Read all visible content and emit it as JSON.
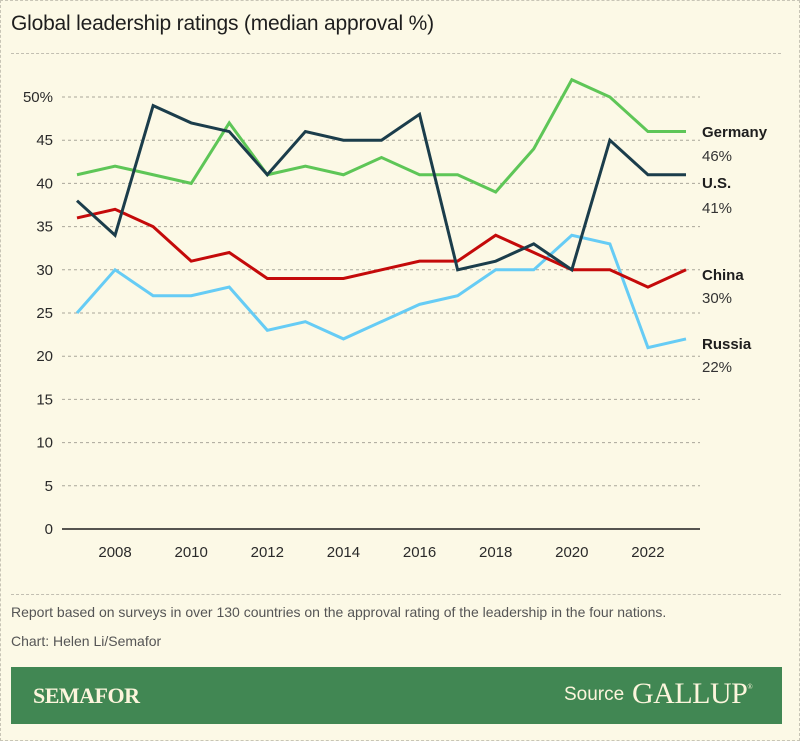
{
  "title": "Global leadership ratings (median approval %)",
  "note": "Report based on surveys in over 130 countries on the approval rating of the leadership in the four nations.",
  "credit": "Chart: Helen Li/Semafor",
  "banner": {
    "brand": "SEMAFOR",
    "source_label": "Source",
    "source_name": "GALLUP",
    "source_mark": "®",
    "background": "#418753"
  },
  "chart_data": {
    "type": "line",
    "title": "Global leadership ratings (median approval %)",
    "xlabel": "",
    "ylabel": "",
    "x": [
      2007,
      2008,
      2009,
      2010,
      2011,
      2012,
      2013,
      2014,
      2015,
      2016,
      2017,
      2018,
      2019,
      2020,
      2021,
      2022,
      2023
    ],
    "xlim": [
      2007,
      2023
    ],
    "ylim": [
      0,
      50
    ],
    "yticks": [
      0,
      5,
      10,
      15,
      20,
      25,
      30,
      35,
      40,
      45,
      50
    ],
    "ytick_labels": [
      "0",
      "5",
      "10",
      "15",
      "20",
      "25",
      "30",
      "35",
      "40",
      "45",
      "50%"
    ],
    "xticks": [
      2008,
      2010,
      2012,
      2014,
      2016,
      2018,
      2020,
      2022
    ],
    "xtick_labels": [
      "2008",
      "2010",
      "2012",
      "2014",
      "2016",
      "2018",
      "2020",
      "2022"
    ],
    "grid": true,
    "legend": "direct-labels-right",
    "series": [
      {
        "name": "Germany",
        "end_label": "46%",
        "color": "#5ec657",
        "values": [
          41,
          42,
          41,
          40,
          47,
          41,
          42,
          41,
          43,
          41,
          41,
          39,
          44,
          52,
          50,
          46,
          46
        ]
      },
      {
        "name": "U.S.",
        "end_label": "41%",
        "color": "#1b3d4b",
        "values": [
          38,
          34,
          49,
          47,
          46,
          41,
          46,
          45,
          45,
          48,
          30,
          31,
          33,
          30,
          45,
          41,
          41
        ]
      },
      {
        "name": "China",
        "end_label": "30%",
        "color": "#c40a0a",
        "values": [
          36,
          37,
          35,
          31,
          32,
          29,
          29,
          29,
          30,
          31,
          31,
          34,
          32,
          30,
          30,
          28,
          30
        ]
      },
      {
        "name": "Russia",
        "end_label": "22%",
        "color": "#66ccf5",
        "values": [
          25,
          30,
          27,
          27,
          28,
          23,
          24,
          22,
          24,
          26,
          27,
          30,
          30,
          34,
          33,
          21,
          22
        ]
      }
    ]
  }
}
